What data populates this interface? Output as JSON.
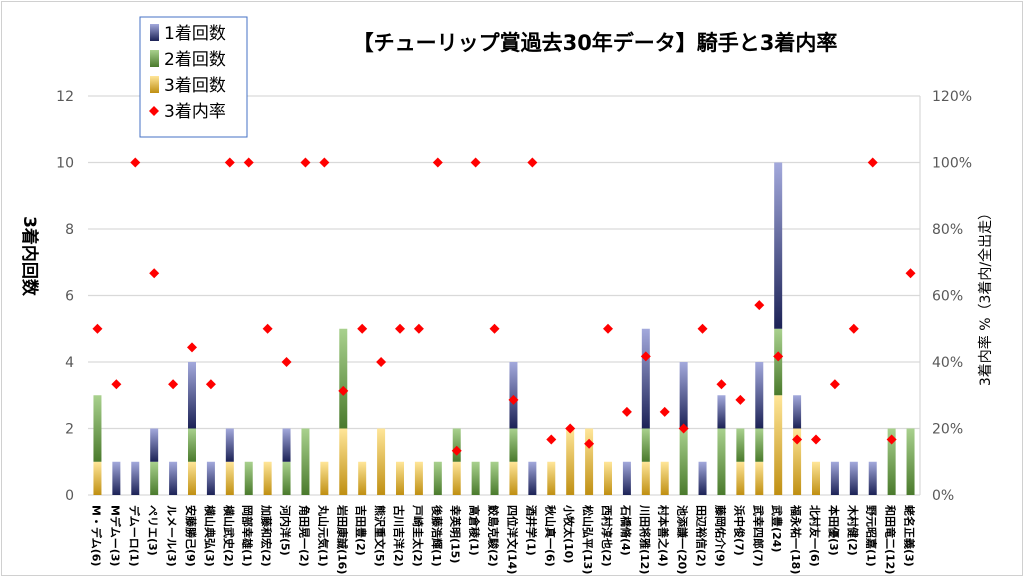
{
  "chart_data": {
    "type": "bar",
    "stacked": true,
    "title": "【チューリップ賞過去30年データ】騎手と3着内率",
    "ylabel": "3着内回数",
    "y2label": "3着内率 %（3着内/全出走）",
    "ylim": [
      0,
      12
    ],
    "y_ticks": [
      "0",
      "2",
      "4",
      "6",
      "8",
      "10",
      "12"
    ],
    "y2lim": [
      0,
      120
    ],
    "y2_ticks": [
      "0%",
      "20%",
      "40%",
      "60%",
      "80%",
      "100%",
      "120%"
    ],
    "grid": true,
    "legend_position": "top-left",
    "categories": [
      "M・デム(6)",
      "Mデムー(3)",
      "デムーロ(1)",
      "ペリエ(3)",
      "ルメール(3)",
      "安藤勝己(9)",
      "横山典弘(3)",
      "横山武史(2)",
      "岡部幸雄(1)",
      "加藤和宏(2)",
      "河内洋(5)",
      "角田晃一(2)",
      "丸山元気(1)",
      "岩田康誠(16)",
      "吉田豊(2)",
      "熊沢重文(5)",
      "古川吉洋(2)",
      "戸崎圭太(2)",
      "後藤浩輝(1)",
      "幸英明(15)",
      "高倉稜(1)",
      "鮫島克駿(2)",
      "四位洋文(14)",
      "酒井学(1)",
      "秋山真一(6)",
      "小牧太(10)",
      "松山弘平(13)",
      "西村淳也(2)",
      "石橋脩(4)",
      "川田将雅(12)",
      "村本善之(4)",
      "池添謙一(20)",
      "田辺裕信(2)",
      "藤岡佑介(9)",
      "浜中俊(7)",
      "武幸四郎(7)",
      "武豊(24)",
      "福永祐一(18)",
      "北村友一(6)",
      "本田優(3)",
      "木村健(2)",
      "野元昭嘉(1)",
      "和田竜二(12)",
      "蛯名正義(3)"
    ],
    "series": [
      {
        "name": "1着回数",
        "color": "#2f3a86",
        "values": [
          0,
          1,
          1,
          1,
          1,
          2,
          1,
          1,
          0,
          0,
          1,
          0,
          0,
          0,
          0,
          0,
          0,
          0,
          0,
          0,
          0,
          0,
          2,
          1,
          0,
          0,
          0,
          0,
          1,
          3,
          0,
          2,
          1,
          1,
          0,
          2,
          5,
          1,
          0,
          1,
          1,
          1,
          0,
          0
        ]
      },
      {
        "name": "2着回数",
        "color": "#5a8a3a",
        "values": [
          2,
          0,
          0,
          1,
          0,
          1,
          0,
          0,
          1,
          0,
          1,
          2,
          0,
          3,
          0,
          0,
          0,
          0,
          1,
          1,
          1,
          1,
          1,
          0,
          0,
          0,
          0,
          0,
          0,
          1,
          0,
          2,
          0,
          2,
          1,
          1,
          2,
          0,
          0,
          0,
          0,
          0,
          2,
          2
        ]
      },
      {
        "name": "3着回数",
        "color": "#c8951c",
        "values": [
          1,
          0,
          0,
          0,
          0,
          1,
          0,
          1,
          0,
          1,
          0,
          0,
          1,
          2,
          1,
          2,
          1,
          1,
          0,
          1,
          0,
          0,
          1,
          0,
          1,
          2,
          2,
          1,
          0,
          1,
          1,
          0,
          0,
          0,
          1,
          1,
          3,
          2,
          1,
          0,
          0,
          0,
          0,
          0
        ]
      },
      {
        "name": "3着内率",
        "color": "#ff0000",
        "axis": "right",
        "values": [
          50,
          33.3,
          100,
          66.7,
          33.3,
          44.4,
          33.3,
          100,
          100,
          50,
          40,
          100,
          100,
          31.3,
          50,
          40,
          50,
          50,
          100,
          13.3,
          100,
          50,
          28.6,
          100,
          16.7,
          20,
          15.4,
          50,
          25,
          41.7,
          25,
          20,
          50,
          33.3,
          28.6,
          57.1,
          41.7,
          16.7,
          16.7,
          33.3,
          50,
          100,
          16.7,
          66.7
        ]
      }
    ]
  }
}
